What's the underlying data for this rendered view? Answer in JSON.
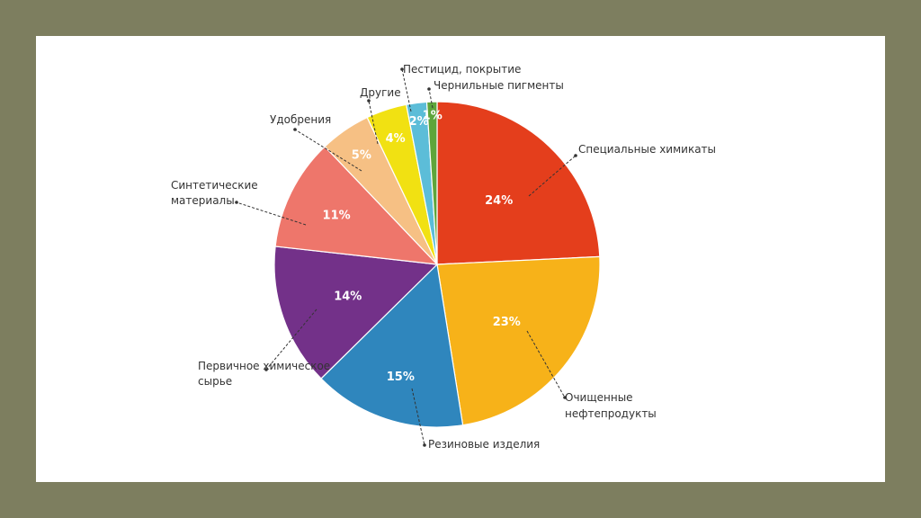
{
  "chart_data": {
    "type": "pie",
    "title": "",
    "start_angle_deg": 0,
    "direction": "clockwise",
    "slices": [
      {
        "label": "Специальные химикаты",
        "value": 24,
        "value_label": "24%",
        "color": "#e43e1c"
      },
      {
        "label": "Очищенные нефтепродукты",
        "value": 23,
        "value_label": "23%",
        "color": "#f7b219"
      },
      {
        "label": "Резиновые изделия",
        "value": 15,
        "value_label": "15%",
        "color": "#2f86bd"
      },
      {
        "label": "Первичное химическое сырье",
        "value": 14,
        "value_label": "14%",
        "color": "#733189"
      },
      {
        "label": "Синтетические материалы",
        "value": 11,
        "value_label": "11%",
        "color": "#ee766b"
      },
      {
        "label": "Удобрения",
        "value": 5,
        "value_label": "5%",
        "color": "#f6c084"
      },
      {
        "label": "Другие",
        "value": 4,
        "value_label": "4%",
        "color": "#f1e112"
      },
      {
        "label": "Пестицид, покрытие",
        "value": 2,
        "value_label": "2%",
        "color": "#5cbdd8"
      },
      {
        "label": "Чернильные пигменты",
        "value": 1,
        "value_label": "1%",
        "color": "#5ea53b"
      }
    ]
  }
}
